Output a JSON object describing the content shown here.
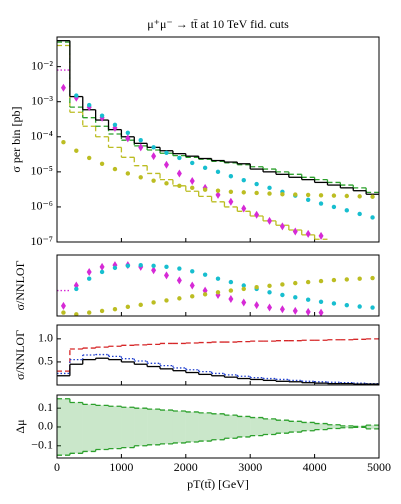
{
  "chart_data": [
    {
      "type": "histogram",
      "title": "μ⁺μ⁻ → tt̄ at 10 TeV fid. cuts",
      "ylabel": "σ per bin [pb]",
      "log_y": true,
      "bins": [
        0,
        200,
        400,
        600,
        800,
        1000,
        1200,
        1400,
        1600,
        1800,
        2000,
        2200,
        2400,
        2600,
        2800,
        3000,
        3200,
        3400,
        3600,
        3800,
        4000,
        4200,
        4400,
        4600,
        4800,
        5000
      ],
      "xlim": [
        0,
        5000
      ],
      "xticks": [
        0,
        1000,
        2000,
        3000,
        4000,
        5000
      ],
      "ylim": [
        1e-07,
        0.07
      ],
      "yticks": [
        {
          "value": 1e-07,
          "label": "10⁻⁷"
        },
        {
          "value": 1e-06,
          "label": "10⁻⁶"
        },
        {
          "value": 1e-05,
          "label": "10⁻⁵"
        },
        {
          "value": 0.0001,
          "label": "10⁻⁴"
        },
        {
          "value": 0.001,
          "label": "10⁻³"
        },
        {
          "value": 0.01,
          "label": "10⁻²"
        }
      ],
      "series": [
        {
          "style": "step",
          "dash": "dashed",
          "color": "#bcbd22",
          "values": [
            0.04,
            0.0005,
            0.0002,
            0.0001,
            5e-05,
            2.6e-05,
            1.5e-05,
            9e-06,
            6e-06,
            4e-06,
            2.8e-06,
            2e-06,
            1.4e-06,
            1e-06,
            7.5e-07,
            5.5e-07,
            4e-07,
            3e-07,
            2.2e-07,
            1.6e-07,
            1.2e-07,
            null,
            null,
            null,
            null
          ]
        },
        {
          "style": "step",
          "dash": "dashed",
          "color": "#2ca02c",
          "values": [
            0.05,
            0.0007,
            0.00035,
            0.0002,
            0.00012,
            8e-05,
            5.5e-05,
            4.2e-05,
            3.4e-05,
            2.9e-05,
            2.6e-05,
            2.3e-05,
            2e-05,
            1.8e-05,
            1.6e-05,
            1.4e-05,
            1.2e-05,
            1e-05,
            8.5e-06,
            7e-06,
            6e-06,
            5e-06,
            4.2e-06,
            3.5e-06,
            2.6e-06
          ]
        },
        {
          "style": "step",
          "dash": "dotted",
          "color": "#d62ad6",
          "values": [
            0.008,
            null,
            null,
            null,
            null,
            null,
            null,
            null,
            null,
            null,
            null,
            null,
            null,
            null,
            null,
            null,
            null,
            null,
            null,
            null,
            null,
            null,
            null,
            null,
            null
          ]
        },
        {
          "style": "step",
          "dash": "solid",
          "color": "#000000",
          "values": [
            0.055,
            0.0014,
            0.00059,
            0.0003,
            0.00016,
            0.0001,
            6.5e-05,
            5e-05,
            4e-05,
            3.3e-05,
            2.8e-05,
            2.4e-05,
            2.1e-05,
            1.9e-05,
            1.7e-05,
            1.2e-05,
            1e-05,
            8.5e-06,
            7e-06,
            6e-06,
            5e-06,
            4.2e-06,
            3.5e-06,
            2.9e-06,
            2.3e-06
          ]
        },
        {
          "style": "points",
          "marker": "diamond",
          "color": "#d62ad6",
          "values": [
            0.0025,
            0.0013,
            0.0007,
            0.00035,
            0.00018,
            9e-05,
            5e-05,
            2.8e-05,
            1.6e-05,
            9e-06,
            5.5e-06,
            3.5e-06,
            2.2e-06,
            1.4e-06,
            9e-07,
            6e-07,
            4e-07,
            2.8e-07,
            2e-07,
            1.7e-07,
            1.5e-07,
            null,
            null,
            null,
            null
          ]
        },
        {
          "style": "points",
          "marker": "circle",
          "color": "#17becf",
          "values": [
            null,
            0.0015,
            0.0008,
            0.0004,
            0.00022,
            0.00013,
            8e-05,
            5e-05,
            3.5e-05,
            2.5e-05,
            1.8e-05,
            1.3e-05,
            1e-05,
            7.5e-06,
            5.8e-06,
            4.5e-06,
            3.5e-06,
            2.7e-06,
            2.1e-06,
            1.6e-06,
            1.25e-06,
            1e-06,
            8e-07,
            6.3e-07,
            5e-07
          ]
        },
        {
          "style": "points",
          "marker": "circle",
          "color": "#bcbd22",
          "values": [
            7e-05,
            4e-05,
            2.5e-05,
            1.7e-05,
            1.2e-05,
            9e-06,
            7e-06,
            5.6e-06,
            4.7e-06,
            4e-06,
            3.5e-06,
            3.1e-06,
            2.9e-06,
            2.7e-06,
            2.6e-06,
            2.5e-06,
            2.4e-06,
            2.3e-06,
            2.25e-06,
            2.2e-06,
            2.15e-06,
            2.1e-06,
            2.05e-06,
            2e-06,
            1.95e-06
          ]
        }
      ]
    },
    {
      "type": "histogram",
      "ylabel": "σ/NNLOΓ",
      "bins": [
        0,
        200,
        400,
        600,
        800,
        1000,
        1200,
        1400,
        1600,
        1800,
        2000,
        2200,
        2400,
        2600,
        2800,
        3000,
        3200,
        3400,
        3600,
        3800,
        4000,
        4200,
        4400,
        4600,
        4800,
        5000
      ],
      "xlim": [
        0,
        5000
      ],
      "xticks": [
        0,
        1000,
        2000,
        3000,
        4000,
        5000
      ],
      "ylim": [
        0,
        1.8
      ],
      "series": [
        {
          "style": "step",
          "dash": "dotted",
          "color": "#d62ad6",
          "values": [
            0.75,
            null,
            null,
            null,
            null,
            null,
            null,
            null,
            null,
            null,
            null,
            null,
            null,
            null,
            null,
            null,
            null,
            null,
            null,
            null,
            null,
            null,
            null,
            null,
            null
          ]
        },
        {
          "style": "points",
          "marker": "diamond",
          "color": "#d62ad6",
          "values": [
            0.3,
            0.9,
            1.3,
            1.45,
            1.5,
            1.5,
            1.45,
            1.35,
            1.2,
            1.05,
            0.9,
            0.75,
            0.62,
            0.5,
            0.4,
            0.32,
            0.25,
            0.2,
            0.15,
            0.12,
            0.1,
            null,
            null,
            null,
            null
          ]
        },
        {
          "style": "points",
          "marker": "circle",
          "color": "#17becf",
          "values": [
            null,
            0.8,
            1.1,
            1.3,
            1.42,
            1.48,
            1.5,
            1.48,
            1.45,
            1.4,
            1.32,
            1.22,
            1.1,
            1.0,
            0.9,
            0.8,
            0.7,
            0.62,
            0.55,
            0.48,
            0.42,
            0.37,
            0.32,
            0.28,
            0.25
          ]
        },
        {
          "style": "points",
          "marker": "circle",
          "color": "#bcbd22",
          "values": [
            0.1,
            0.05,
            0.1,
            0.15,
            0.2,
            0.27,
            0.33,
            0.4,
            0.46,
            0.52,
            0.58,
            0.64,
            0.7,
            0.75,
            0.8,
            0.85,
            0.89,
            0.93,
            0.97,
            1.0,
            1.03,
            1.06,
            1.08,
            1.1,
            1.12
          ]
        }
      ]
    },
    {
      "type": "histogram",
      "ylabel": "σ/NNLOΓ",
      "bins": [
        0,
        200,
        400,
        600,
        800,
        1000,
        1200,
        1400,
        1600,
        1800,
        2000,
        2200,
        2400,
        2600,
        2800,
        3000,
        3200,
        3400,
        3600,
        3800,
        4000,
        4200,
        4400,
        4600,
        4800,
        5000
      ],
      "xlim": [
        0,
        5000
      ],
      "xticks": [
        0,
        1000,
        2000,
        3000,
        4000,
        5000
      ],
      "ylim": [
        0,
        1.3
      ],
      "yticks": [
        0.5,
        {
          "value": 1,
          "label": "1.0"
        }
      ],
      "series": [
        {
          "style": "step",
          "dash": "dashed",
          "color": "#d62728",
          "values": [
            0.3,
            0.78,
            0.8,
            0.82,
            0.84,
            0.86,
            0.87,
            0.88,
            0.9,
            0.9,
            0.91,
            0.92,
            0.93,
            0.93,
            0.94,
            0.95,
            0.95,
            0.96,
            0.96,
            0.97,
            0.97,
            0.98,
            0.98,
            0.99,
            1.0
          ]
        },
        {
          "style": "step",
          "dash": "dotted",
          "color": "#1f3fcf",
          "values": [
            0.25,
            0.55,
            0.65,
            0.66,
            0.62,
            0.57,
            0.52,
            0.47,
            0.42,
            0.37,
            0.33,
            0.29,
            0.25,
            0.22,
            0.19,
            0.16,
            0.14,
            0.12,
            0.1,
            0.08,
            0.07,
            0.06,
            0.05,
            0.04,
            0.03
          ]
        },
        {
          "style": "step",
          "dash": "solid",
          "color": "#000000",
          "values": [
            0.2,
            0.45,
            0.55,
            0.58,
            0.55,
            0.5,
            0.45,
            0.4,
            0.35,
            0.31,
            0.27,
            0.23,
            0.2,
            0.17,
            0.14,
            0.12,
            0.1,
            0.08,
            0.07,
            0.05,
            0.04,
            0.03,
            0.03,
            0.02,
            0.02
          ]
        }
      ]
    },
    {
      "type": "histogram",
      "ylabel": "Δμ",
      "xlabel": "pT(tt̄) [GeV]",
      "bins": [
        0,
        200,
        400,
        600,
        800,
        1000,
        1200,
        1400,
        1600,
        1800,
        2000,
        2200,
        2400,
        2600,
        2800,
        3000,
        3200,
        3400,
        3600,
        3800,
        4000,
        4200,
        4400,
        4600,
        4800,
        5000
      ],
      "xlim": [
        0,
        5000
      ],
      "xticks": [
        0,
        1000,
        2000,
        3000,
        4000,
        5000
      ],
      "ylim": [
        -0.165,
        0.17
      ],
      "yticks": [
        {
          "value": -0.1,
          "label": "−0.1"
        },
        {
          "value": 0,
          "label": "0.0"
        },
        0.1
      ],
      "series": [
        {
          "style": "band",
          "dash": "dashed",
          "color": "#2ca02c",
          "values": [
            0.15,
            0.13,
            0.12,
            0.115,
            0.11,
            0.105,
            0.1,
            0.095,
            0.09,
            0.085,
            0.08,
            0.075,
            0.07,
            0.063,
            0.056,
            0.05,
            0.043,
            0.036,
            0.03,
            0.024,
            0.018,
            0.012,
            0.006,
            0.003,
            0.01
          ],
          "lower": [
            -0.15,
            -0.14,
            -0.13,
            -0.12,
            -0.115,
            -0.11,
            -0.1,
            -0.095,
            -0.09,
            -0.085,
            -0.08,
            -0.075,
            -0.068,
            -0.06,
            -0.053,
            -0.046,
            -0.04,
            -0.033,
            -0.027,
            -0.02,
            -0.014,
            -0.008,
            -0.004,
            -0.002,
            -0.01
          ]
        }
      ]
    }
  ]
}
